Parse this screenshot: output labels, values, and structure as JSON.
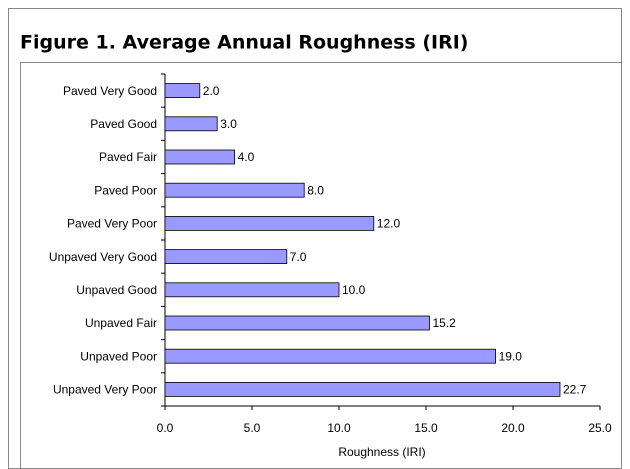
{
  "chart_data": {
    "type": "bar",
    "orientation": "horizontal",
    "title": "Figure 1. Average Annual Roughness (IRI)",
    "x_label": "Roughness (IRI)",
    "categories": [
      "Paved Very Good",
      "Paved Good",
      "Paved Fair",
      "Paved Poor",
      "Paved Very Poor",
      "Unpaved Very Good",
      "Unpaved Good",
      "Unpaved Fair",
      "Unpaved Poor",
      "Unpaved Very Poor"
    ],
    "values": [
      2.0,
      3.0,
      4.0,
      8.0,
      12.0,
      7.0,
      10.0,
      15.2,
      19.0,
      22.7
    ],
    "value_labels": [
      "2.0",
      "3.0",
      "4.0",
      "8.0",
      "12.0",
      "7.0",
      "10.0",
      "15.2",
      "19.0",
      "22.7"
    ],
    "color": "#9999ff",
    "xlim": [
      0,
      25
    ],
    "xticks": [
      {
        "value": 0,
        "label": "0.0"
      },
      {
        "value": 5,
        "label": "5.0"
      },
      {
        "value": 10,
        "label": "10.0"
      },
      {
        "value": 15,
        "label": "15.0"
      },
      {
        "value": 20,
        "label": "20.0"
      },
      {
        "value": 25,
        "label": "25.0"
      }
    ],
    "grid": false
  }
}
